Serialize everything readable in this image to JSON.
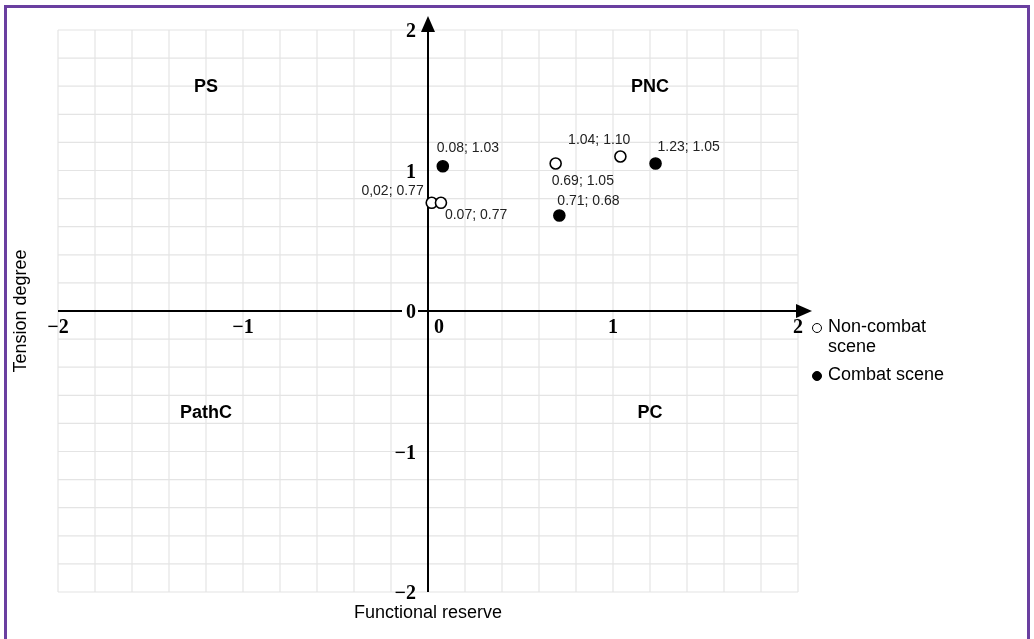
{
  "chart_data": {
    "type": "scatter",
    "xlabel": "Functional reserve",
    "ylabel": "Tension degree",
    "xlim": [
      -2,
      2
    ],
    "ylim": [
      -2,
      2
    ],
    "xticks": [
      {
        "value": -2,
        "label": "−2"
      },
      {
        "value": -1.8,
        "label": null
      },
      {
        "value": -1.6,
        "label": null
      },
      {
        "value": -1.4,
        "label": null
      },
      {
        "value": -1.2,
        "label": null
      },
      {
        "value": -1,
        "label": "−1"
      },
      {
        "value": -0.8,
        "label": null
      },
      {
        "value": -0.6,
        "label": null
      },
      {
        "value": -0.4,
        "label": null
      },
      {
        "value": -0.2,
        "label": null
      },
      0,
      {
        "value": 0.2,
        "label": null
      },
      {
        "value": 0.4,
        "label": null
      },
      {
        "value": 0.6,
        "label": null
      },
      {
        "value": 0.8,
        "label": null
      },
      1,
      {
        "value": 1.2,
        "label": null
      },
      {
        "value": 1.4,
        "label": null
      },
      {
        "value": 1.6,
        "label": null
      },
      {
        "value": 1.8,
        "label": null
      },
      2
    ],
    "yticks": [
      {
        "value": -2,
        "label": "−2"
      },
      {
        "value": -1.8,
        "label": null
      },
      {
        "value": -1.6,
        "label": null
      },
      {
        "value": -1.4,
        "label": null
      },
      {
        "value": -1.2,
        "label": null
      },
      {
        "value": -1,
        "label": "−1"
      },
      {
        "value": -0.8,
        "label": null
      },
      {
        "value": -0.6,
        "label": null
      },
      {
        "value": -0.4,
        "label": null
      },
      {
        "value": -0.2,
        "label": null
      },
      0,
      {
        "value": 0.2,
        "label": null
      },
      {
        "value": 0.4,
        "label": null
      },
      {
        "value": 0.6,
        "label": null
      },
      {
        "value": 0.8,
        "label": null
      },
      1,
      {
        "value": 1.2,
        "label": null
      },
      {
        "value": 1.4,
        "label": null
      },
      {
        "value": 1.6,
        "label": null
      },
      {
        "value": 1.8,
        "label": null
      },
      2
    ],
    "grid": true,
    "legend": "right",
    "marker": "circle",
    "series": [
      {
        "name": "Non-combat scene",
        "color": "#000000",
        "x": [
          0.02,
          0.07,
          0.69,
          1.04
        ],
        "values": [
          0.77,
          0.77,
          1.05,
          1.1
        ],
        "value_labels": [
          "0,02; 0.77",
          "0.07; 0.77",
          "0.69; 1.05",
          "1.04; 1.10"
        ]
      },
      {
        "name": "Combat scene",
        "color": "#000000",
        "x": [
          0.08,
          0.71,
          1.23
        ],
        "values": [
          1.03,
          0.68,
          1.05
        ],
        "value_labels": [
          "0.08; 1.03",
          "0.71; 0.68",
          "1.23; 1.05"
        ]
      }
    ],
    "annotations": [
      "PS",
      "PNC",
      "PathC",
      "PC"
    ]
  }
}
